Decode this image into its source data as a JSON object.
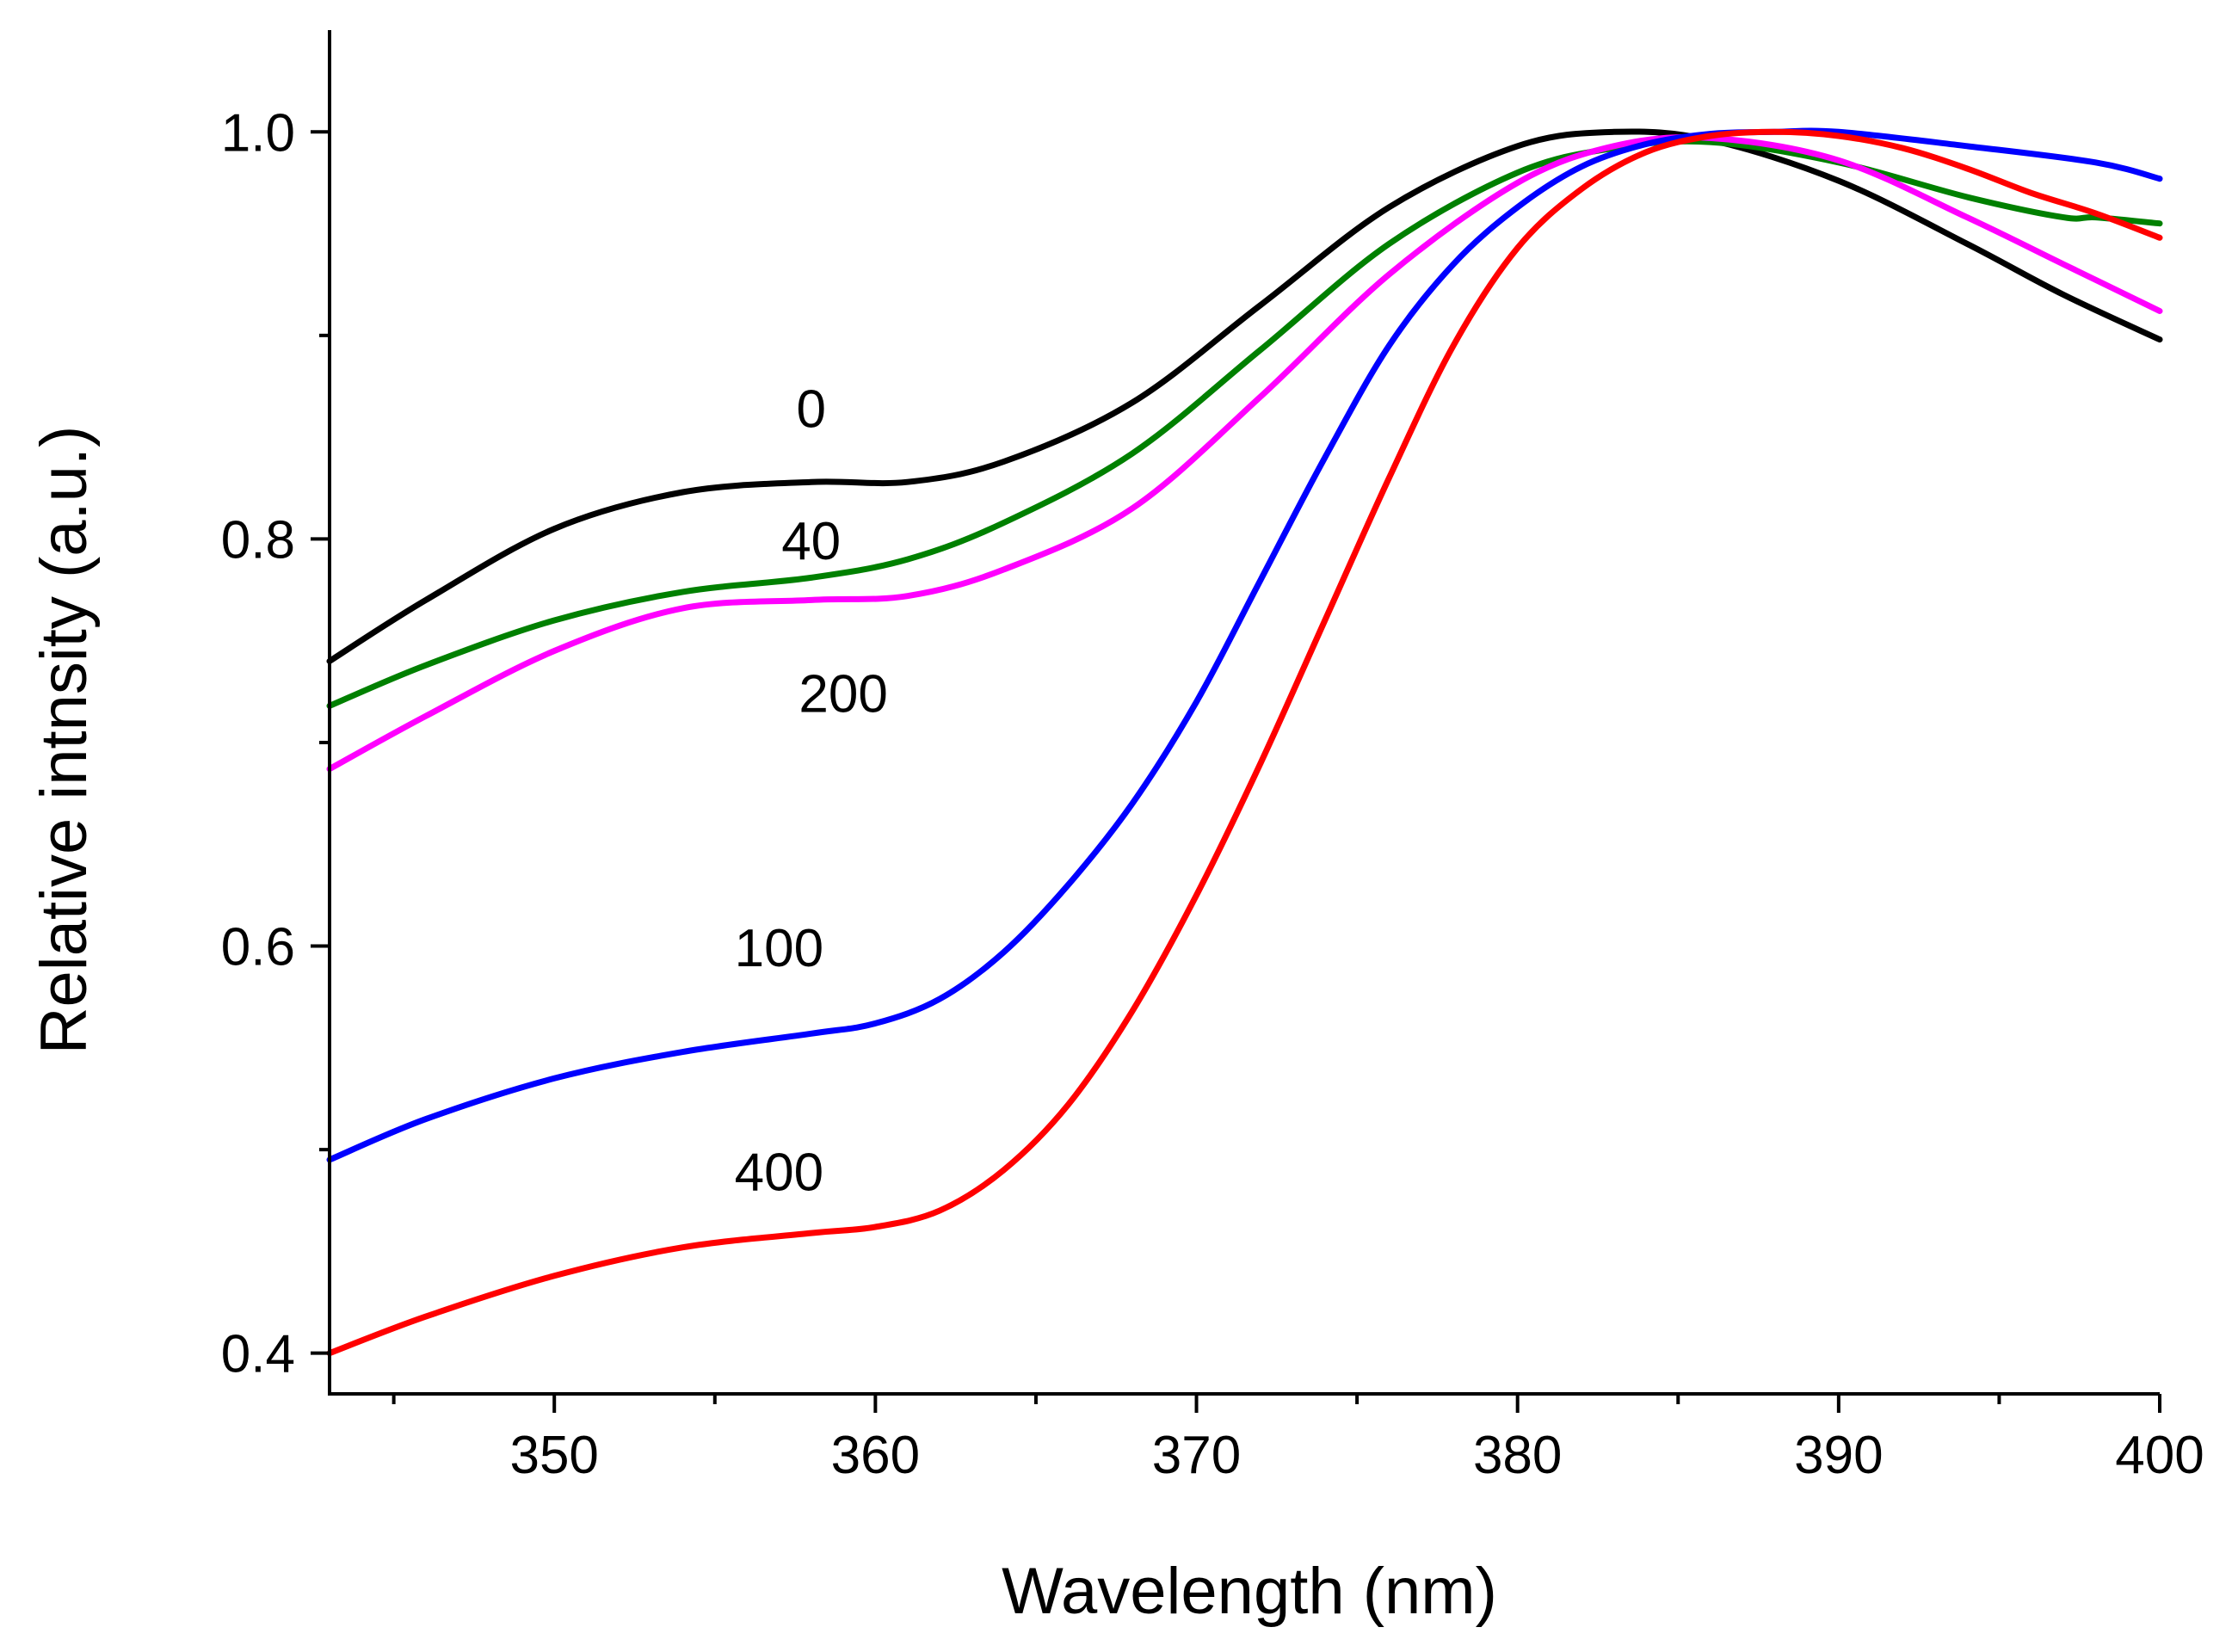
{
  "chart_data": {
    "type": "line",
    "title": "",
    "xlabel": "Wavelength (nm)",
    "ylabel": "Relative intnsity (a.u.)",
    "xlim": [
      343,
      400
    ],
    "ylim": [
      0.38,
      1.05
    ],
    "x_ticks": [
      350,
      360,
      370,
      380,
      390,
      400
    ],
    "x_tick_labels": [
      "350",
      "360",
      "370",
      "380",
      "390",
      "400"
    ],
    "x_minor_ticks": [
      345,
      355,
      365,
      375,
      385,
      395
    ],
    "y_ticks": [
      0.4,
      0.6,
      0.8,
      1.0
    ],
    "y_tick_labels": [
      "0.4",
      "0.6",
      "0.8",
      "1.0"
    ],
    "y_minor_ticks": [
      0.5,
      0.7,
      0.9
    ],
    "grid": false,
    "series": [
      {
        "name": "0",
        "color": "#000000",
        "label_at": [
          358,
          0.855
        ],
        "x": [
          343,
          346,
          350,
          354,
          358,
          361,
          364,
          368,
          372,
          376,
          380,
          383,
          386,
          390,
          394,
          397,
          400
        ],
        "y": [
          0.74,
          0.77,
          0.805,
          0.823,
          0.828,
          0.828,
          0.838,
          0.867,
          0.915,
          0.963,
          0.993,
          1.0,
          0.996,
          0.976,
          0.945,
          0.92,
          0.898
        ]
      },
      {
        "name": "40",
        "color": "#008000",
        "label_at": [
          358,
          0.79
        ],
        "x": [
          343,
          346,
          350,
          354,
          358,
          361,
          364,
          368,
          372,
          376,
          380,
          383,
          386,
          390,
          394,
          397,
          398,
          400
        ],
        "y": [
          0.718,
          0.738,
          0.76,
          0.774,
          0.781,
          0.79,
          0.808,
          0.842,
          0.893,
          0.945,
          0.98,
          0.992,
          0.995,
          0.985,
          0.968,
          0.958,
          0.958,
          0.955
        ]
      },
      {
        "name": "200",
        "color": "#ff00ff",
        "label_at": [
          359,
          0.715
        ],
        "x": [
          343,
          346,
          350,
          354,
          358,
          361,
          364,
          368,
          372,
          376,
          380,
          383,
          386,
          390,
          394,
          397,
          400
        ],
        "y": [
          0.687,
          0.713,
          0.745,
          0.766,
          0.77,
          0.772,
          0.785,
          0.815,
          0.87,
          0.93,
          0.975,
          0.993,
          0.997,
          0.986,
          0.958,
          0.935,
          0.912
        ]
      },
      {
        "name": "100",
        "color": "#0000ff",
        "label_at": [
          357,
          0.59
        ],
        "x": [
          343,
          346,
          350,
          354,
          358,
          360,
          362,
          364,
          366,
          368,
          370,
          372,
          374,
          376,
          378,
          380,
          382,
          384,
          386,
          388,
          390,
          394,
          398,
          400
        ],
        "y": [
          0.495,
          0.515,
          0.535,
          0.548,
          0.557,
          0.562,
          0.574,
          0.597,
          0.63,
          0.67,
          0.72,
          0.78,
          0.84,
          0.895,
          0.935,
          0.963,
          0.983,
          0.994,
          0.999,
          1.0,
          1.0,
          0.993,
          0.985,
          0.977
        ]
      },
      {
        "name": "400",
        "color": "#ff0000",
        "label_at": [
          357,
          0.48
        ],
        "x": [
          343,
          346,
          350,
          354,
          358,
          360,
          362,
          364,
          366,
          368,
          370,
          372,
          374,
          376,
          378,
          380,
          382,
          384,
          386,
          388,
          390,
          392,
          394,
          396,
          398,
          400
        ],
        "y": [
          0.4,
          0.418,
          0.438,
          0.452,
          0.459,
          0.462,
          0.47,
          0.49,
          0.522,
          0.568,
          0.625,
          0.69,
          0.76,
          0.83,
          0.895,
          0.943,
          0.972,
          0.99,
          0.998,
          1.0,
          0.998,
          0.992,
          0.982,
          0.97,
          0.96,
          0.948
        ]
      }
    ]
  }
}
